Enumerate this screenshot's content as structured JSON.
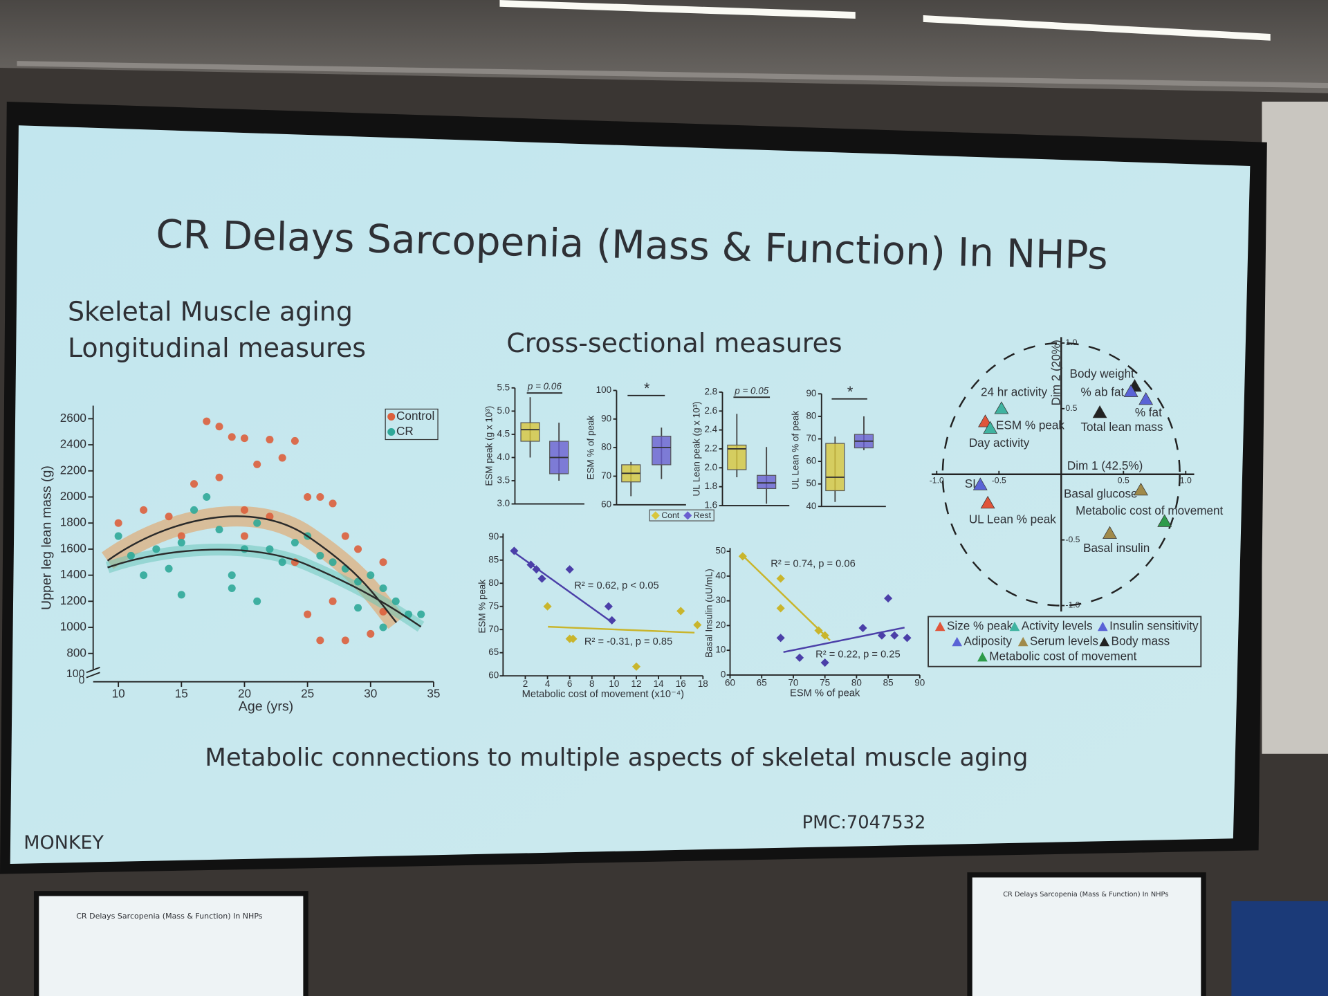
{
  "slide": {
    "title": "CR Delays Sarcopenia (Mass & Function) In NHPs",
    "left_heading": [
      "Skeletal Muscle aging",
      "Longitudinal measures"
    ],
    "middle_heading": "Cross-sectional measures",
    "caption": "Metabolic connections to multiple aspects of skeletal muscle aging",
    "footer_left": "MONKEY",
    "footer_right": "PMC:7047532"
  },
  "charts": [
    {
      "type": "scatter",
      "xlabel": "Age (yrs)",
      "ylabel": "Upper leg lean mass (g)",
      "xlim": [
        8,
        35
      ],
      "ylim": [
        680,
        2700
      ],
      "xticks": [
        10,
        15,
        20,
        25,
        30,
        35
      ],
      "yticks": [
        800,
        1000,
        1200,
        1400,
        1600,
        1800,
        2000,
        2200,
        2400,
        2600
      ],
      "break_labels": [
        "100",
        "0"
      ],
      "series": [
        {
          "name": "Control",
          "color": "#dc5f3c",
          "x": [
            17,
            18,
            19,
            20,
            22,
            24,
            23,
            21,
            16,
            18,
            25,
            26,
            27,
            12,
            14,
            20,
            22,
            28,
            29,
            31,
            27,
            25,
            26,
            28,
            30,
            10,
            15,
            20,
            24,
            31
          ],
          "values": [
            2580,
            2540,
            2460,
            2450,
            2440,
            2430,
            2300,
            2250,
            2100,
            2150,
            2000,
            2000,
            1950,
            1900,
            1850,
            1900,
            1850,
            1700,
            1600,
            1500,
            1200,
            1100,
            900,
            900,
            950,
            1800,
            1700,
            1700,
            1500,
            1120
          ]
        },
        {
          "name": "CR",
          "color": "#2fa898",
          "x": [
            10,
            11,
            13,
            15,
            16,
            17,
            18,
            19,
            20,
            21,
            22,
            23,
            24,
            25,
            26,
            27,
            28,
            29,
            30,
            31,
            32,
            33,
            34,
            14,
            12,
            19,
            21,
            15,
            29,
            31
          ],
          "values": [
            1700,
            1550,
            1600,
            1650,
            1900,
            2000,
            1750,
            1400,
            1600,
            1800,
            1600,
            1500,
            1650,
            1700,
            1550,
            1500,
            1450,
            1350,
            1400,
            1300,
            1200,
            1100,
            1100,
            1450,
            1400,
            1300,
            1200,
            1250,
            1150,
            1000
          ]
        }
      ]
    },
    {
      "type": "box",
      "ylabel": "ESM peak (g x 10³)",
      "annotation": "p = 0.06",
      "ylim": [
        3,
        5.5
      ],
      "yticks": [
        {
          "value": 3,
          "label": "3.0"
        },
        3.5,
        {
          "value": 4,
          "label": "4.0"
        },
        4.5,
        {
          "value": 5,
          "label": "5.0"
        },
        5.5
      ],
      "boxes": [
        {
          "min": 4.0,
          "q1": 4.35,
          "median": 4.6,
          "q3": 4.75,
          "max": 5.3
        },
        {
          "min": 3.5,
          "q1": 3.65,
          "median": 4.0,
          "q3": 4.35,
          "max": 4.75
        }
      ]
    },
    {
      "type": "box",
      "ylabel": "ESM % of peak",
      "annotation": "*",
      "ylim": [
        60,
        100
      ],
      "yticks": [
        60,
        70,
        80,
        90,
        100
      ],
      "boxes": [
        {
          "min": 63,
          "q1": 68,
          "median": 71,
          "q3": 74,
          "max": 75
        },
        {
          "min": 69,
          "q1": 74,
          "median": 80,
          "q3": 84,
          "max": 87
        }
      ]
    },
    {
      "type": "box",
      "ylabel": "UL Lean peak (g x 10³)",
      "annotation": "p = 0.05",
      "ylim": [
        1.6,
        2.8
      ],
      "yticks": [
        1.6,
        1.8,
        {
          "value": 2,
          "label": "2.0"
        },
        2.2,
        2.4,
        2.6,
        2.8
      ],
      "boxes": [
        {
          "min": 1.9,
          "q1": 1.98,
          "median": 2.2,
          "q3": 2.24,
          "max": 2.57
        },
        {
          "min": 1.62,
          "q1": 1.78,
          "median": 1.84,
          "q3": 1.92,
          "max": 2.22
        }
      ]
    },
    {
      "type": "box",
      "ylabel": "UL Lean % of peak",
      "annotation": "*",
      "ylim": [
        40,
        90
      ],
      "yticks": [
        40,
        50,
        60,
        70,
        80,
        90
      ],
      "boxes": [
        {
          "min": 42,
          "q1": 47,
          "median": 53,
          "q3": 68,
          "max": 71
        },
        {
          "min": 65,
          "q1": 66,
          "median": 69,
          "q3": 72,
          "max": 80
        }
      ]
    },
    {
      "type": "scatter",
      "xlabel": "Metabolic cost of movement (x10⁻⁴)",
      "ylabel": "ESM % peak",
      "xlim": [
        0,
        18
      ],
      "ylim": [
        60,
        90
      ],
      "xticks": [
        2,
        4,
        6,
        8,
        10,
        12,
        14,
        16,
        18
      ],
      "yticks": [
        60,
        65,
        70,
        75,
        80,
        85,
        90
      ],
      "annotations": [
        "R² = 0.62, p < 0.05",
        "R² = -0.31,  p = 0.85"
      ],
      "series": [
        {
          "color": "#4b3fa8",
          "x": [
            1,
            2.5,
            3,
            3.5,
            6,
            9.5,
            9.8
          ],
          "values": [
            87,
            84,
            83,
            81,
            83,
            75,
            72
          ]
        },
        {
          "color": "#c9b52c",
          "x": [
            4,
            6,
            6.3,
            12,
            16,
            17.5
          ],
          "values": [
            75,
            68,
            68,
            62,
            74,
            71
          ]
        }
      ]
    },
    {
      "type": "scatter",
      "xlabel": "ESM % of peak",
      "ylabel": "Basal Insulin (uU/mL)",
      "xlim": [
        60,
        90
      ],
      "ylim": [
        0,
        50
      ],
      "xticks": [
        60,
        65,
        70,
        75,
        80,
        85,
        90
      ],
      "yticks": [
        0,
        10,
        20,
        30,
        40,
        50
      ],
      "annotations": [
        "R² = 0.74, p = 0.06",
        "R² = 0.22, p = 0.25"
      ],
      "series": [
        {
          "color": "#c9b52c",
          "x": [
            62,
            68,
            68,
            74,
            75
          ],
          "values": [
            48,
            39,
            27,
            18,
            16
          ]
        },
        {
          "color": "#4b3fa8",
          "x": [
            68,
            71,
            75,
            81,
            85,
            84,
            86,
            88
          ],
          "values": [
            15,
            7,
            5,
            19,
            31,
            16,
            16,
            15
          ]
        }
      ]
    },
    {
      "type": "biplot",
      "xlabel": "Dim 1 (42.5%)",
      "ylabel": "Dim 2 (20%)",
      "xlim": [
        -1,
        1
      ],
      "ylim": [
        -1,
        1
      ],
      "xticks": [
        {
          "value": -1,
          "label": "-1.0"
        },
        -0.5,
        0.5,
        {
          "value": 1,
          "label": "1.0"
        }
      ],
      "yticks": [
        {
          "value": -1,
          "label": "-1.0"
        },
        -0.5,
        0.5,
        {
          "value": 1,
          "label": "1.0"
        }
      ],
      "labels": [
        "Body weight",
        "% ab fat",
        "% fat",
        "24 hr activity",
        "ESM % peak",
        "Total lean mass",
        "Day activity",
        "SI",
        "Basal glucose",
        "Metabolic cost of movement",
        "UL Lean % peak",
        "Basal insulin"
      ],
      "points": [
        {
          "color": "#3fb3a0",
          "x": -0.48,
          "y": 0.5
        },
        {
          "color": "#e0553a",
          "x": -0.61,
          "y": 0.4
        },
        {
          "color": "#3fb3a0",
          "x": -0.57,
          "y": 0.35
        },
        {
          "color": "#222222",
          "x": 0.59,
          "y": 0.67
        },
        {
          "color": "#5a63d6",
          "x": 0.56,
          "y": 0.63
        },
        {
          "color": "#5a63d6",
          "x": 0.68,
          "y": 0.57
        },
        {
          "color": "#222222",
          "x": 0.31,
          "y": 0.47
        },
        {
          "color": "#5a63d6",
          "x": -0.65,
          "y": -0.08
        },
        {
          "color": "#e0553a",
          "x": -0.59,
          "y": -0.22
        },
        {
          "color": "#a08a4a",
          "x": 0.64,
          "y": -0.12
        },
        {
          "color": "#2e9b4a",
          "x": 0.83,
          "y": -0.36
        },
        {
          "color": "#a08a4a",
          "x": 0.39,
          "y": -0.45
        }
      ],
      "legend": [
        {
          "name": "Size % peak",
          "color": "#e0553a"
        },
        {
          "name": "Activity levels",
          "color": "#3fb3a0"
        },
        {
          "name": "Insulin sensitivity",
          "color": "#5a63d6"
        },
        {
          "name": "Adiposity",
          "color": "#5a63d6"
        },
        {
          "name": "Serum levels",
          "color": "#a08a4a"
        },
        {
          "name": "Body mass",
          "color": "#222222"
        },
        {
          "name": "Metabolic cost of movement",
          "color": "#2e9b4a"
        }
      ]
    }
  ],
  "box_legend": [
    {
      "name": "Cont",
      "color": "#d8c63c"
    },
    {
      "name": "Rest",
      "color": "#6a5fd0"
    }
  ]
}
